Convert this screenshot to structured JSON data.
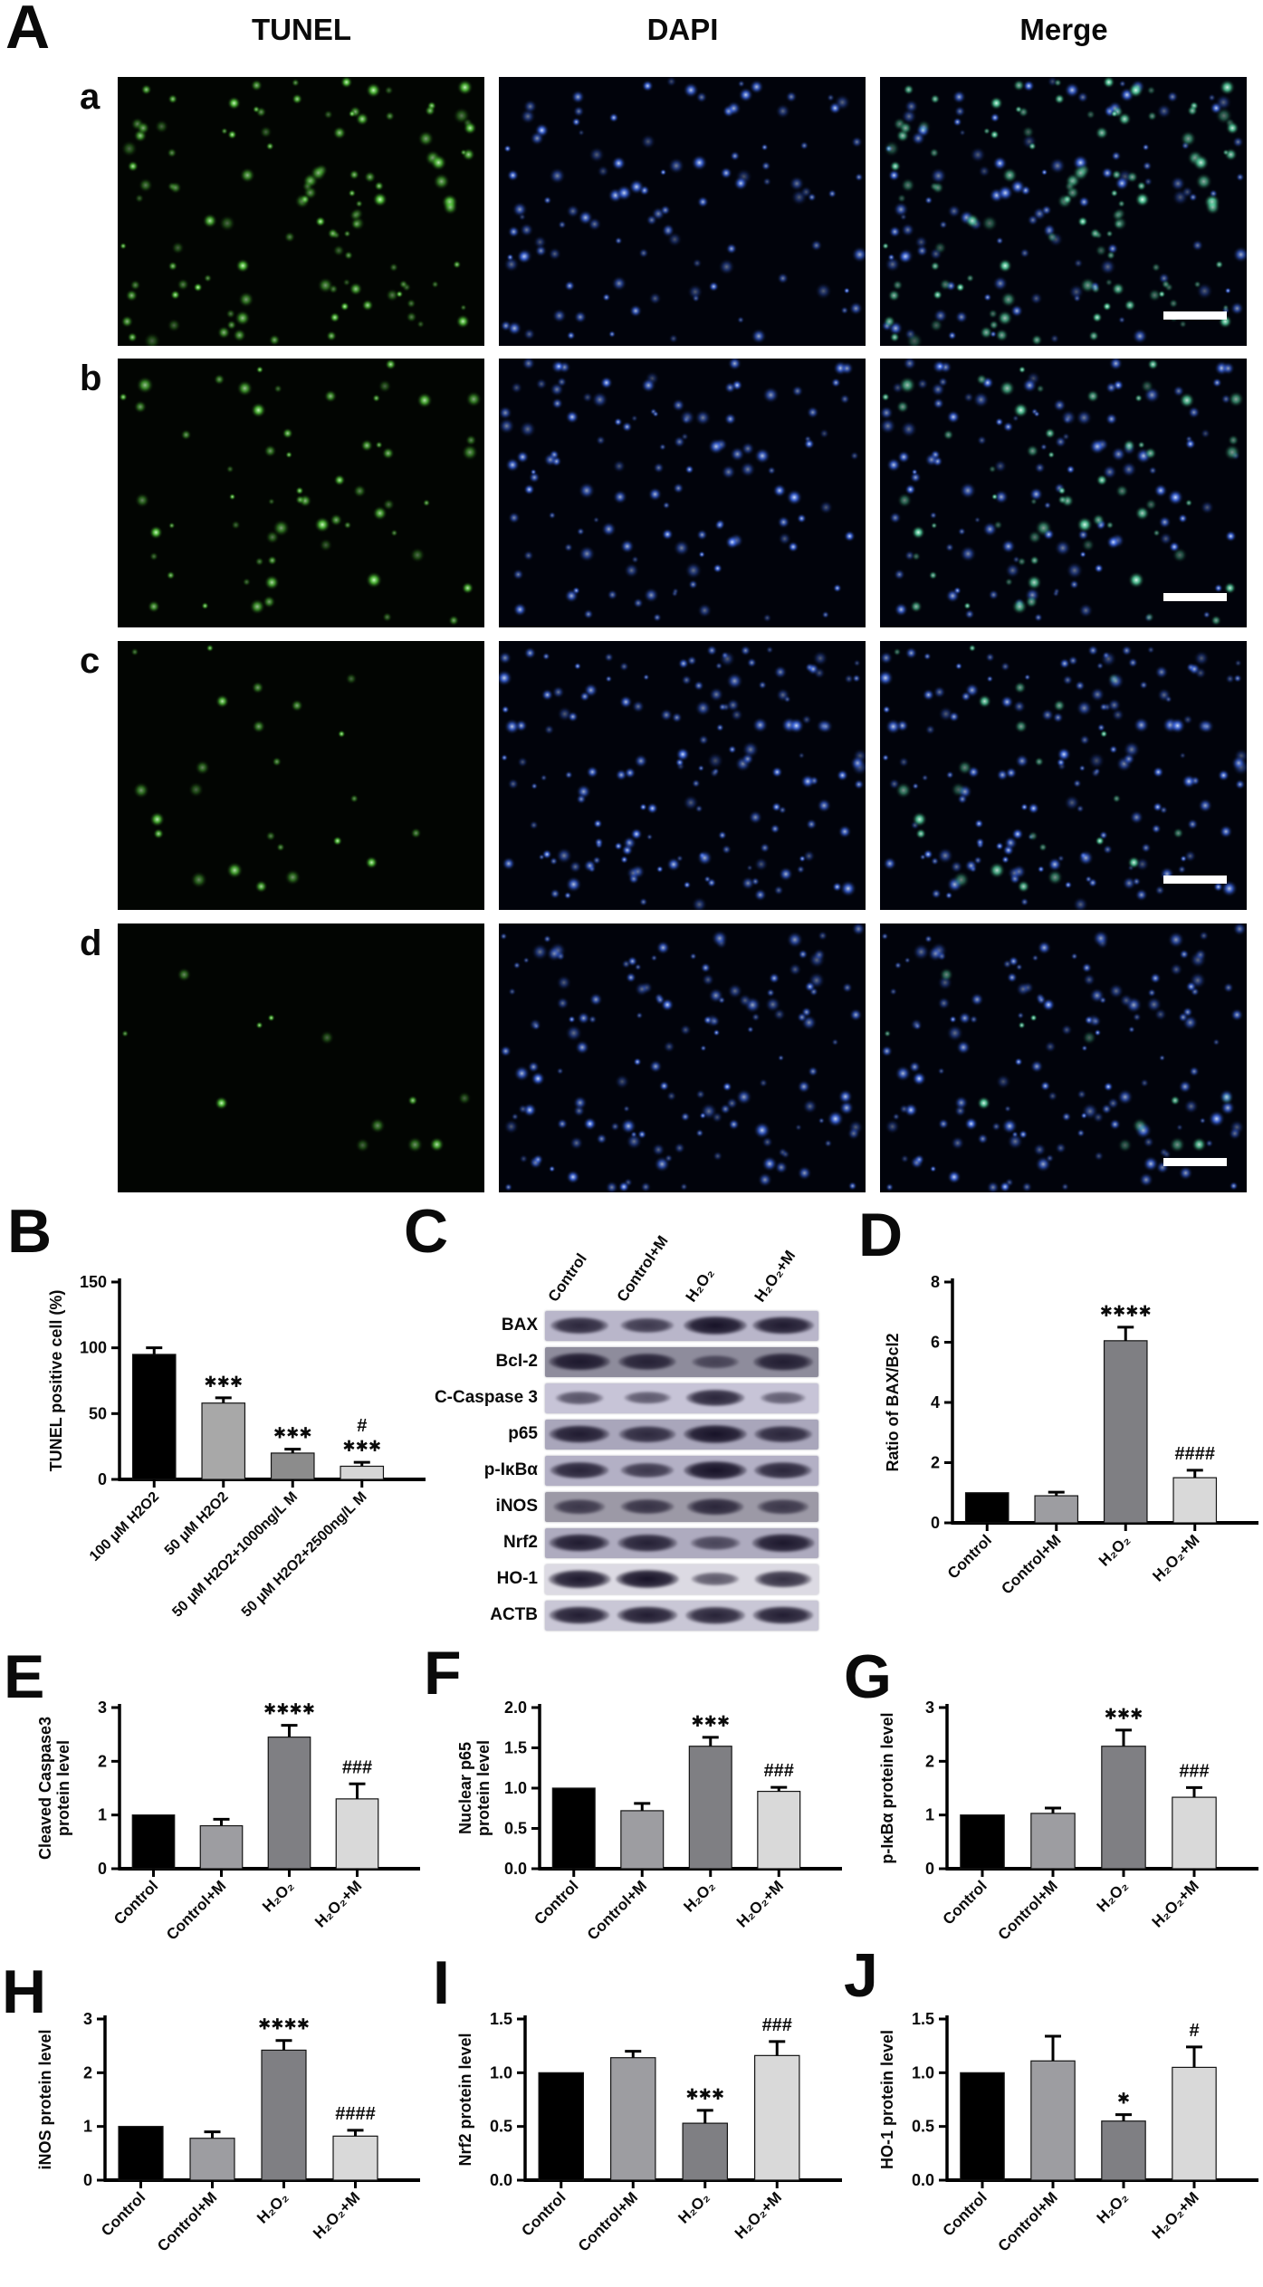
{
  "panel_labels": {
    "A": "A",
    "B": "B",
    "C": "C",
    "D": "D",
    "E": "E",
    "F": "F",
    "G": "G",
    "H": "H",
    "I": "I",
    "J": "J"
  },
  "panel_a": {
    "label": "A",
    "column_headers": [
      "TUNEL",
      "DAPI",
      "Merge"
    ],
    "row_labels": [
      "a",
      "b",
      "c",
      "d"
    ],
    "colors": {
      "tunel_dot": "#55d43a",
      "dapi_dot": "#3e6cf2",
      "merge_green": "#54dba4",
      "scale_bar": "#ffffff",
      "background": "#000000"
    },
    "densities": {
      "tunel": [
        115,
        60,
        24,
        12
      ],
      "dapi": [
        105,
        115,
        155,
        145
      ]
    }
  },
  "western_blot": {
    "panel": "C",
    "lane_labels": [
      "Control",
      "Control+M",
      "H₂O₂",
      "H₂O₂+M"
    ],
    "rows": [
      {
        "protein": "BAX",
        "bg": "#b9b6ca",
        "bands": [
          0.78,
          0.62,
          1.0,
          0.92
        ]
      },
      {
        "protein": "Bcl-2",
        "bg": "#8e8c9c",
        "bands": [
          0.92,
          0.8,
          0.35,
          0.85
        ]
      },
      {
        "protein": "C-Caspase 3",
        "bg": "#c7c4d7",
        "bands": [
          0.38,
          0.34,
          0.82,
          0.3
        ]
      },
      {
        "protein": "p65",
        "bg": "#a9a6bb",
        "bands": [
          0.9,
          0.75,
          1.0,
          0.78
        ]
      },
      {
        "protein": "p-IκBα",
        "bg": "#b3b0c5",
        "bands": [
          0.82,
          0.62,
          1.0,
          0.8
        ]
      },
      {
        "protein": "iNOS",
        "bg": "#9c99a6",
        "bands": [
          0.55,
          0.6,
          0.75,
          0.55
        ]
      },
      {
        "protein": "Nrf2",
        "bg": "#aeabbf",
        "bands": [
          0.9,
          0.85,
          0.45,
          0.95
        ]
      },
      {
        "protein": "HO-1",
        "bg": "#dcdae3",
        "bands": [
          0.95,
          1.0,
          0.4,
          0.75
        ]
      },
      {
        "protein": "ACTB",
        "bg": "#c9c7d6",
        "bands": [
          0.9,
          0.9,
          0.85,
          0.9
        ]
      }
    ]
  },
  "chart_data": [
    {
      "panel": "B",
      "type": "bar",
      "ylabel": [
        "TUNEL positive cell (%)"
      ],
      "ylim": [
        0,
        150
      ],
      "yticks": [
        0,
        50,
        100,
        150
      ],
      "ytick_labels": [
        "0",
        "50",
        "100",
        "150"
      ],
      "categories": [
        "100 μM H2O2",
        "50 μM H2O2",
        "50 μM H2O2+1000ng/L M",
        "50 μM H2O2+2500ng/L M"
      ],
      "values": [
        95,
        58,
        20,
        10
      ],
      "errors": [
        5,
        4,
        3,
        3
      ],
      "annotations": [
        [],
        [
          "***"
        ],
        [
          "***"
        ],
        [
          "#",
          "***"
        ]
      ],
      "bar_colors": [
        "#000000",
        "#a8a8a8",
        "#8c8c8c",
        "#d6d6d6"
      ]
    },
    {
      "panel": "D",
      "type": "bar",
      "ylabel": [
        "Ratio of BAX/Bcl2"
      ],
      "ylim": [
        0,
        8
      ],
      "yticks": [
        0,
        2,
        4,
        6,
        8
      ],
      "ytick_labels": [
        "0",
        "2",
        "4",
        "6",
        "8"
      ],
      "categories": [
        "Control",
        "Control+M",
        "H₂O₂",
        "H₂O₂+M"
      ],
      "values": [
        1.0,
        0.9,
        6.05,
        1.5
      ],
      "errors": [
        0,
        0.12,
        0.45,
        0.25
      ],
      "annotations": [
        [],
        [],
        [
          "****"
        ],
        [
          "####"
        ]
      ],
      "bar_colors": [
        "#000000",
        "#9d9da1",
        "#7f7f83",
        "#d9d9d9"
      ]
    },
    {
      "panel": "E",
      "type": "bar",
      "ylabel": [
        "Cleaved Caspase3",
        "protein level"
      ],
      "ylim": [
        0,
        3
      ],
      "yticks": [
        0,
        1,
        2,
        3
      ],
      "ytick_labels": [
        "0",
        "1",
        "2",
        "3"
      ],
      "categories": [
        "Control",
        "Control+M",
        "H₂O₂",
        "H₂O₂+M"
      ],
      "values": [
        1.0,
        0.8,
        2.45,
        1.3
      ],
      "errors": [
        0,
        0.12,
        0.22,
        0.28
      ],
      "annotations": [
        [],
        [],
        [
          "****"
        ],
        [
          "###"
        ]
      ],
      "bar_colors": [
        "#000000",
        "#9d9da1",
        "#7f7f83",
        "#d9d9d9"
      ]
    },
    {
      "panel": "F",
      "type": "bar",
      "ylabel": [
        "Nuclear p65",
        "protein level"
      ],
      "ylim": [
        0,
        2
      ],
      "yticks": [
        0,
        0.5,
        1,
        1.5,
        2
      ],
      "ytick_labels": [
        "0.0",
        "0.5",
        "1.0",
        "1.5",
        "2.0"
      ],
      "categories": [
        "Control",
        "Control+M",
        "H₂O₂",
        "H₂O₂+M"
      ],
      "values": [
        1.0,
        0.72,
        1.52,
        0.96
      ],
      "errors": [
        0,
        0.09,
        0.11,
        0.05
      ],
      "annotations": [
        [],
        [],
        [
          "***"
        ],
        [
          "###"
        ]
      ],
      "bar_colors": [
        "#000000",
        "#9d9da1",
        "#7f7f83",
        "#d9d9d9"
      ]
    },
    {
      "panel": "G",
      "type": "bar",
      "ylabel": [
        "p-IκBα protein level"
      ],
      "ylim": [
        0,
        3
      ],
      "yticks": [
        0,
        1,
        2,
        3
      ],
      "ytick_labels": [
        "0",
        "1",
        "2",
        "3"
      ],
      "categories": [
        "Control",
        "Control+M",
        "H₂O₂",
        "H₂O₂+M"
      ],
      "values": [
        1.0,
        1.03,
        2.28,
        1.33
      ],
      "errors": [
        0,
        0.1,
        0.3,
        0.18
      ],
      "annotations": [
        [],
        [],
        [
          "***"
        ],
        [
          "###"
        ]
      ],
      "bar_colors": [
        "#000000",
        "#9d9da1",
        "#7f7f83",
        "#d9d9d9"
      ]
    },
    {
      "panel": "H",
      "type": "bar",
      "ylabel": [
        "iNOS protein level"
      ],
      "ylim": [
        0,
        3
      ],
      "yticks": [
        0,
        1,
        2,
        3
      ],
      "ytick_labels": [
        "0",
        "1",
        "2",
        "3"
      ],
      "categories": [
        "Control",
        "Control+M",
        "H₂O₂",
        "H₂O₂+M"
      ],
      "values": [
        1.0,
        0.78,
        2.42,
        0.82
      ],
      "errors": [
        0,
        0.12,
        0.18,
        0.11
      ],
      "annotations": [
        [],
        [],
        [
          "****"
        ],
        [
          "####"
        ]
      ],
      "bar_colors": [
        "#000000",
        "#9d9da1",
        "#7f7f83",
        "#d9d9d9"
      ]
    },
    {
      "panel": "I",
      "type": "bar",
      "ylabel": [
        "Nrf2 protein level"
      ],
      "ylim": [
        0,
        1.5
      ],
      "yticks": [
        0,
        0.5,
        1,
        1.5
      ],
      "ytick_labels": [
        "0.0",
        "0.5",
        "1.0",
        "1.5"
      ],
      "categories": [
        "Control",
        "Control+M",
        "H₂O₂",
        "H₂O₂+M"
      ],
      "values": [
        1.0,
        1.14,
        0.53,
        1.16
      ],
      "errors": [
        0,
        0.06,
        0.12,
        0.13
      ],
      "annotations": [
        [],
        [],
        [
          "***"
        ],
        [
          "###"
        ]
      ],
      "bar_colors": [
        "#000000",
        "#9d9da1",
        "#7f7f83",
        "#d9d9d9"
      ]
    },
    {
      "panel": "J",
      "type": "bar",
      "ylabel": [
        "HO-1 protein level"
      ],
      "ylim": [
        0,
        1.5
      ],
      "yticks": [
        0,
        0.5,
        1,
        1.5
      ],
      "ytick_labels": [
        "0.0",
        "0.5",
        "1.0",
        "1.5"
      ],
      "categories": [
        "Control",
        "Control+M",
        "H₂O₂",
        "H₂O₂+M"
      ],
      "values": [
        1.0,
        1.11,
        0.55,
        1.05
      ],
      "errors": [
        0,
        0.23,
        0.06,
        0.19
      ],
      "annotations": [
        [],
        [],
        [
          "*"
        ],
        [
          "#"
        ]
      ],
      "bar_colors": [
        "#000000",
        "#9d9da1",
        "#7f7f83",
        "#d9d9d9"
      ]
    }
  ]
}
